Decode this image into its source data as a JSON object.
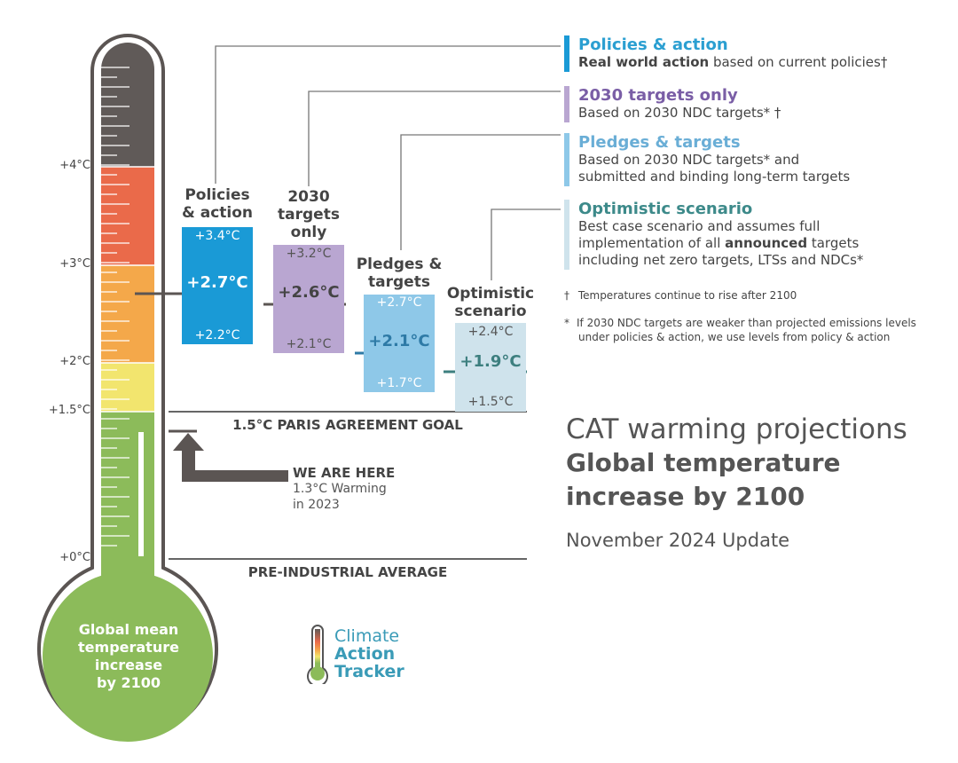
{
  "axis_labels": [
    "+4°C",
    "+3°C",
    "+2°C",
    "+1.5°C",
    "+0°C"
  ],
  "bulb_text": [
    "Global mean",
    "temperature",
    "increase",
    "by 2100"
  ],
  "scenarios": [
    {
      "title": [
        "Policies",
        "& action"
      ],
      "high": "+3.4°C",
      "median": "+2.7°C",
      "low": "+2.2°C",
      "color": "#1a9ad6",
      "text_color": "#ffffff"
    },
    {
      "title": [
        "2030",
        "targets",
        "only"
      ],
      "high": "+3.2°C",
      "median": "+2.6°C",
      "low": "+2.1°C",
      "color": "#b9a6d1",
      "text_color": "#555555"
    },
    {
      "title": [
        "Pledges &",
        "targets"
      ],
      "high": "+2.7°C",
      "median": "+2.1°C",
      "low": "+1.7°C",
      "color": "#8ec8e8",
      "text_color": "#ffffff"
    },
    {
      "title": [
        "Optimistic",
        "scenario"
      ],
      "high": "+2.4°C",
      "median": "+1.9°C",
      "low": "+1.5°C",
      "color": "#cfe3ec",
      "text_color": "#555555"
    }
  ],
  "paris_goal": "1.5°C PARIS AGREEMENT GOAL",
  "pre_industrial": "PRE-INDUSTRIAL AVERAGE",
  "we_are_here": {
    "title": "WE ARE HERE",
    "line1": "1.3°C Warming",
    "line2": "in 2023"
  },
  "legend": [
    {
      "title": "Policies & action",
      "color": "#1a9ad6",
      "title_color": "#2b9fd1",
      "lines": [
        [
          {
            "t": "Real world action",
            "b": true
          },
          {
            "t": " based on current policies†",
            "b": false
          }
        ]
      ]
    },
    {
      "title": "2030 targets only",
      "color": "#b9a6d1",
      "title_color": "#7a5ea6",
      "lines": [
        [
          {
            "t": "Based on 2030 NDC targets* †",
            "b": false
          }
        ]
      ]
    },
    {
      "title": "Pledges & targets",
      "color": "#8ec8e8",
      "title_color": "#6aaed6",
      "lines": [
        [
          {
            "t": "Based on 2030 NDC targets* and",
            "b": false
          }
        ],
        [
          {
            "t": "submitted and binding long-term targets",
            "b": false
          }
        ]
      ]
    },
    {
      "title": "Optimistic scenario",
      "color": "#cfe3ec",
      "title_color": "#3d8a8a",
      "lines": [
        [
          {
            "t": "Best case scenario and assumes full",
            "b": false
          }
        ],
        [
          {
            "t": "implementation of all ",
            "b": false
          },
          {
            "t": "announced",
            "b": true
          },
          {
            "t": " targets",
            "b": false
          }
        ],
        [
          {
            "t": "including net zero targets, LTSs and NDCs*",
            "b": false
          }
        ]
      ]
    }
  ],
  "notes": {
    "dagger_symbol": "†",
    "dagger": "Temperatures continue to rise after 2100",
    "star_symbol": "*",
    "star_line1": "If 2030 NDC targets are weaker than projected emissions levels",
    "star_line2": "under policies & action, we use levels from policy & action"
  },
  "heading": {
    "line1": "CAT warming projections",
    "line2": "Global temperature",
    "line3": "increase by 2100",
    "update": "November 2024 Update"
  },
  "logo": {
    "line1": "Climate",
    "line2": "Action",
    "line3": "Tracker"
  },
  "colors": {
    "band_dark": "#605a58",
    "band_red": "#ea6a4a",
    "band_orange": "#f4a84a",
    "band_yellow": "#f2e56e",
    "band_green": "#8cbb5a",
    "outline": "#5b5553",
    "line": "#666666",
    "arrow": "#5b5553"
  }
}
